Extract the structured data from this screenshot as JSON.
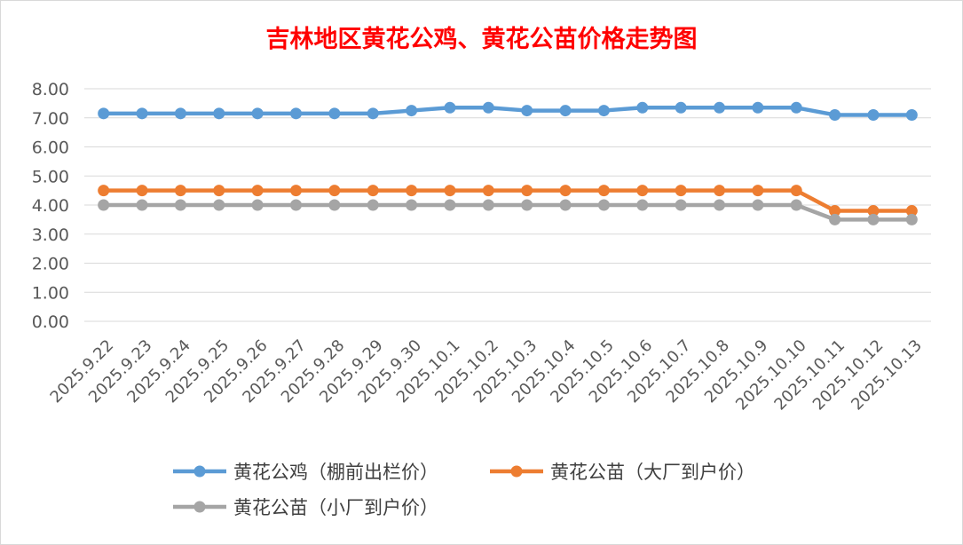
{
  "chart_data": {
    "type": "line",
    "title": "吉林地区黄花公鸡、黄花公苗价格走势图",
    "xlabel": "",
    "ylabel": "",
    "ylim": [
      0,
      8
    ],
    "yticks": [
      "0.00",
      "1.00",
      "2.00",
      "3.00",
      "4.00",
      "5.00",
      "6.00",
      "7.00",
      "8.00"
    ],
    "grid": true,
    "legend_position": "bottom",
    "categories": [
      "2025.9.22",
      "2025.9.23",
      "2025.9.24",
      "2025.9.25",
      "2025.9.26",
      "2025.9.27",
      "2025.9.28",
      "2025.9.29",
      "2025.9.30",
      "2025.10.1",
      "2025.10.2",
      "2025.10.3",
      "2025.10.4",
      "2025.10.5",
      "2025.10.6",
      "2025.10.7",
      "2025.10.8",
      "2025.10.9",
      "2025.10.10",
      "2025.10.11",
      "2025.10.12",
      "2025.10.13"
    ],
    "series": [
      {
        "name": "黄花公鸡（棚前出栏价）",
        "color": "#5b9bd5",
        "values": [
          7.15,
          7.15,
          7.15,
          7.15,
          7.15,
          7.15,
          7.15,
          7.15,
          7.25,
          7.35,
          7.35,
          7.25,
          7.25,
          7.25,
          7.35,
          7.35,
          7.35,
          7.35,
          7.35,
          7.1,
          7.1,
          7.1
        ]
      },
      {
        "name": "黄花公苗（大厂到户价）",
        "color": "#ed7d31",
        "values": [
          4.5,
          4.5,
          4.5,
          4.5,
          4.5,
          4.5,
          4.5,
          4.5,
          4.5,
          4.5,
          4.5,
          4.5,
          4.5,
          4.5,
          4.5,
          4.5,
          4.5,
          4.5,
          4.5,
          3.8,
          3.8,
          3.8
        ]
      },
      {
        "name": "黄花公苗（小厂到户价）",
        "color": "#a5a5a5",
        "values": [
          4.0,
          4.0,
          4.0,
          4.0,
          4.0,
          4.0,
          4.0,
          4.0,
          4.0,
          4.0,
          4.0,
          4.0,
          4.0,
          4.0,
          4.0,
          4.0,
          4.0,
          4.0,
          4.0,
          3.5,
          3.5,
          3.5
        ]
      }
    ]
  },
  "colors": {
    "title": "#ff0000",
    "grid": "#d9d9d9",
    "tick_text": "#595959"
  }
}
